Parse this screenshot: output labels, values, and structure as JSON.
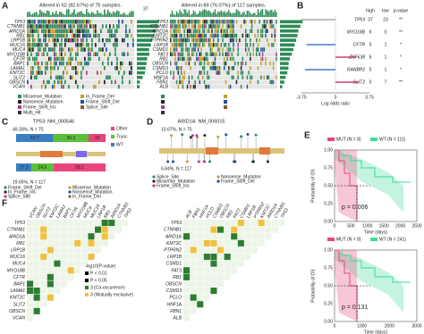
{
  "panels": {
    "A": {
      "letter": "A",
      "left_title": "Altered in 62 (82.67%) of 75 samples.",
      "right_title": "Altered in 89 (76.07%) of 117 samples.",
      "axis_max": "37",
      "left_genes": [
        "TP53",
        "CTNNB1",
        "ARID1A",
        "RB1",
        "LRP1B",
        "MUC16",
        "MUC4",
        "MYO18B",
        "CFTR",
        "BAP1",
        "LAMA1",
        "KMT2C",
        "SLIT2",
        "OBSCN",
        "VCAN"
      ],
      "right_genes": [
        "TP53",
        "CTNNB1",
        "ARID1A",
        "KMT2C",
        "PTPRN2",
        "LRP1B",
        "CSMD1",
        "FAT3",
        "RB1",
        "OBSCN",
        "CSMD3",
        "PCLO",
        "HNF1A",
        "FBN1",
        "ALB"
      ],
      "legend": [
        "Missense_Mutation",
        "In_Frame_Del",
        "Nonsense_Mutation",
        "Frame_Shift_Del",
        "Frame_Shift_Ins",
        "Splice_Site",
        "Multi_Hit"
      ]
    },
    "B": {
      "letter": "B",
      "header": [
        "high",
        "low",
        "p-value"
      ],
      "rows": [
        [
          "TP53",
          "37",
          "23",
          "**"
        ],
        [
          "MYO18B",
          "6",
          "0",
          "**"
        ],
        [
          "CFTR",
          "5",
          "1",
          "*"
        ],
        [
          "ZNF638",
          "6",
          "1",
          "*"
        ],
        [
          "RANBP2",
          "5",
          "1",
          "*"
        ],
        [
          "SLIT2",
          "0",
          "7",
          "**"
        ]
      ],
      "axis_label": "Log odds ratio",
      "ticks": [
        "-3.75",
        "0",
        "3.75"
      ]
    },
    "C": {
      "letter": "C",
      "title": "TP53: NM_000546",
      "top_label": "49.33%, N = 75",
      "bottom_label": "19.65%, N = 117",
      "bar_legend": [
        "Other",
        "Trunc",
        "WT"
      ],
      "top_bar": [
        41.7,
        39.3,
        19
      ],
      "bottom_bar": [
        17.3,
        24.6,
        58.1
      ],
      "legend": [
        "Frame_Shift_Del",
        "Missense_Mutation",
        "In_Frame_Ins",
        "Nonsense_Mutation",
        "Splice_Site",
        "In_Frame_Del"
      ]
    },
    "D": {
      "letter": "D",
      "title": "ARID1A: NM_006015",
      "top_label": "10.67%, N = 75",
      "bottom_label": "6.84%, N = 117",
      "legend": [
        "Splice_Site",
        "Nonsense_Mutation",
        "Missense_Mutation",
        "Frame_Shift_Del",
        "Frame_Shift_Ins"
      ]
    },
    "E": {
      "letter": "E",
      "y_label": "Probability of OS",
      "x_label": "Time (days)",
      "yticks": [
        "0.00",
        "0.25",
        "0.50",
        "0.75",
        "1.00"
      ],
      "top": {
        "mut": "MUT (N = 8)",
        "wt": "WT (N = 111)",
        "p": "p = 0.006",
        "xticks": [
          "0",
          "500",
          "1000",
          "1500",
          "2000",
          "2500"
        ]
      },
      "bottom": {
        "mut": "MUT (N = 8)",
        "wt": "WT (N = 241)",
        "p": "p = 0.131",
        "xticks": [
          "0",
          "1000",
          "2000",
          "3000"
        ]
      }
    },
    "F": {
      "letter": "F",
      "legend_title": "-log10(P-value)",
      "legend": [
        "P < 0.01",
        "P < 0.05",
        "3 (Co-occurence)",
        "3 (Mutually exclusive)"
      ]
    }
  }
}
